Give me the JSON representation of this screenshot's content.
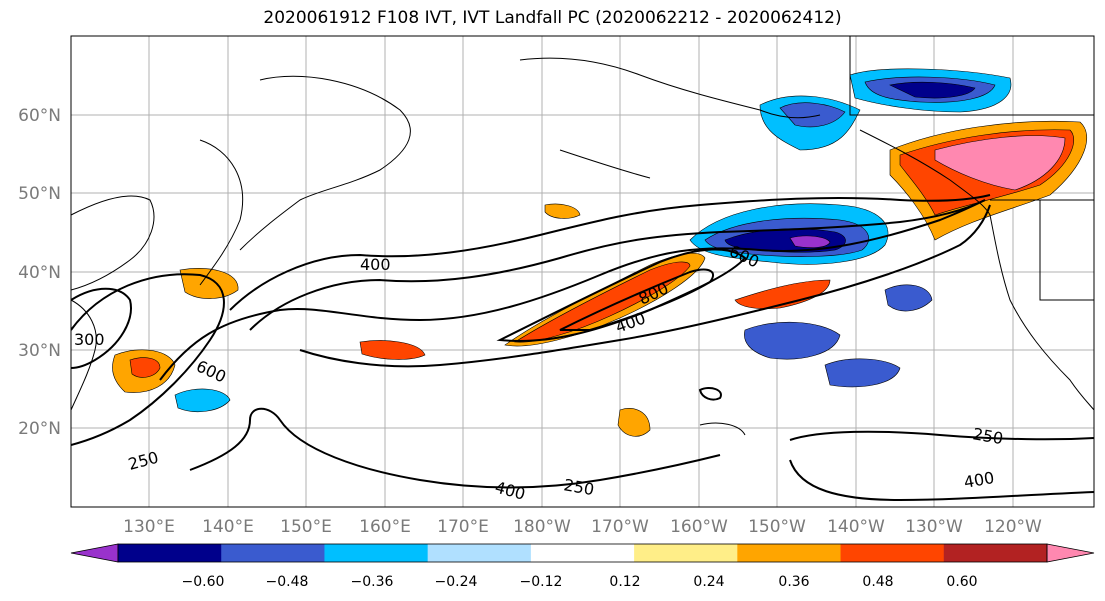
{
  "title": "2020061912 F108 IVT, IVT Landfall PC (2020062212 - 2020062412)",
  "lat_labels": [
    "60°N",
    "50°N",
    "40°N",
    "30°N",
    "20°N"
  ],
  "lon_labels": [
    "130°E",
    "140°E",
    "150°E",
    "160°E",
    "170°E",
    "180°W",
    "170°W",
    "160°W",
    "150°W",
    "140°W",
    "130°W",
    "120°W"
  ],
  "contour_labels": [
    "400",
    "600",
    "800",
    "400",
    "600",
    "300",
    "250",
    "400",
    "250",
    "250",
    "400"
  ],
  "colorbar": {
    "ticks": [
      "−0.60",
      "−0.48",
      "−0.36",
      "−0.24",
      "−0.12",
      "0.12",
      "0.24",
      "0.36",
      "0.48",
      "0.60"
    ],
    "colors": [
      "#9932cc",
      "#00008b",
      "#3a5bcf",
      "#00bfff",
      "#b0e0ff",
      "#ffffff",
      "#ffee88",
      "#ffa500",
      "#ff4500",
      "#b22222",
      "#ff88b0"
    ]
  }
}
